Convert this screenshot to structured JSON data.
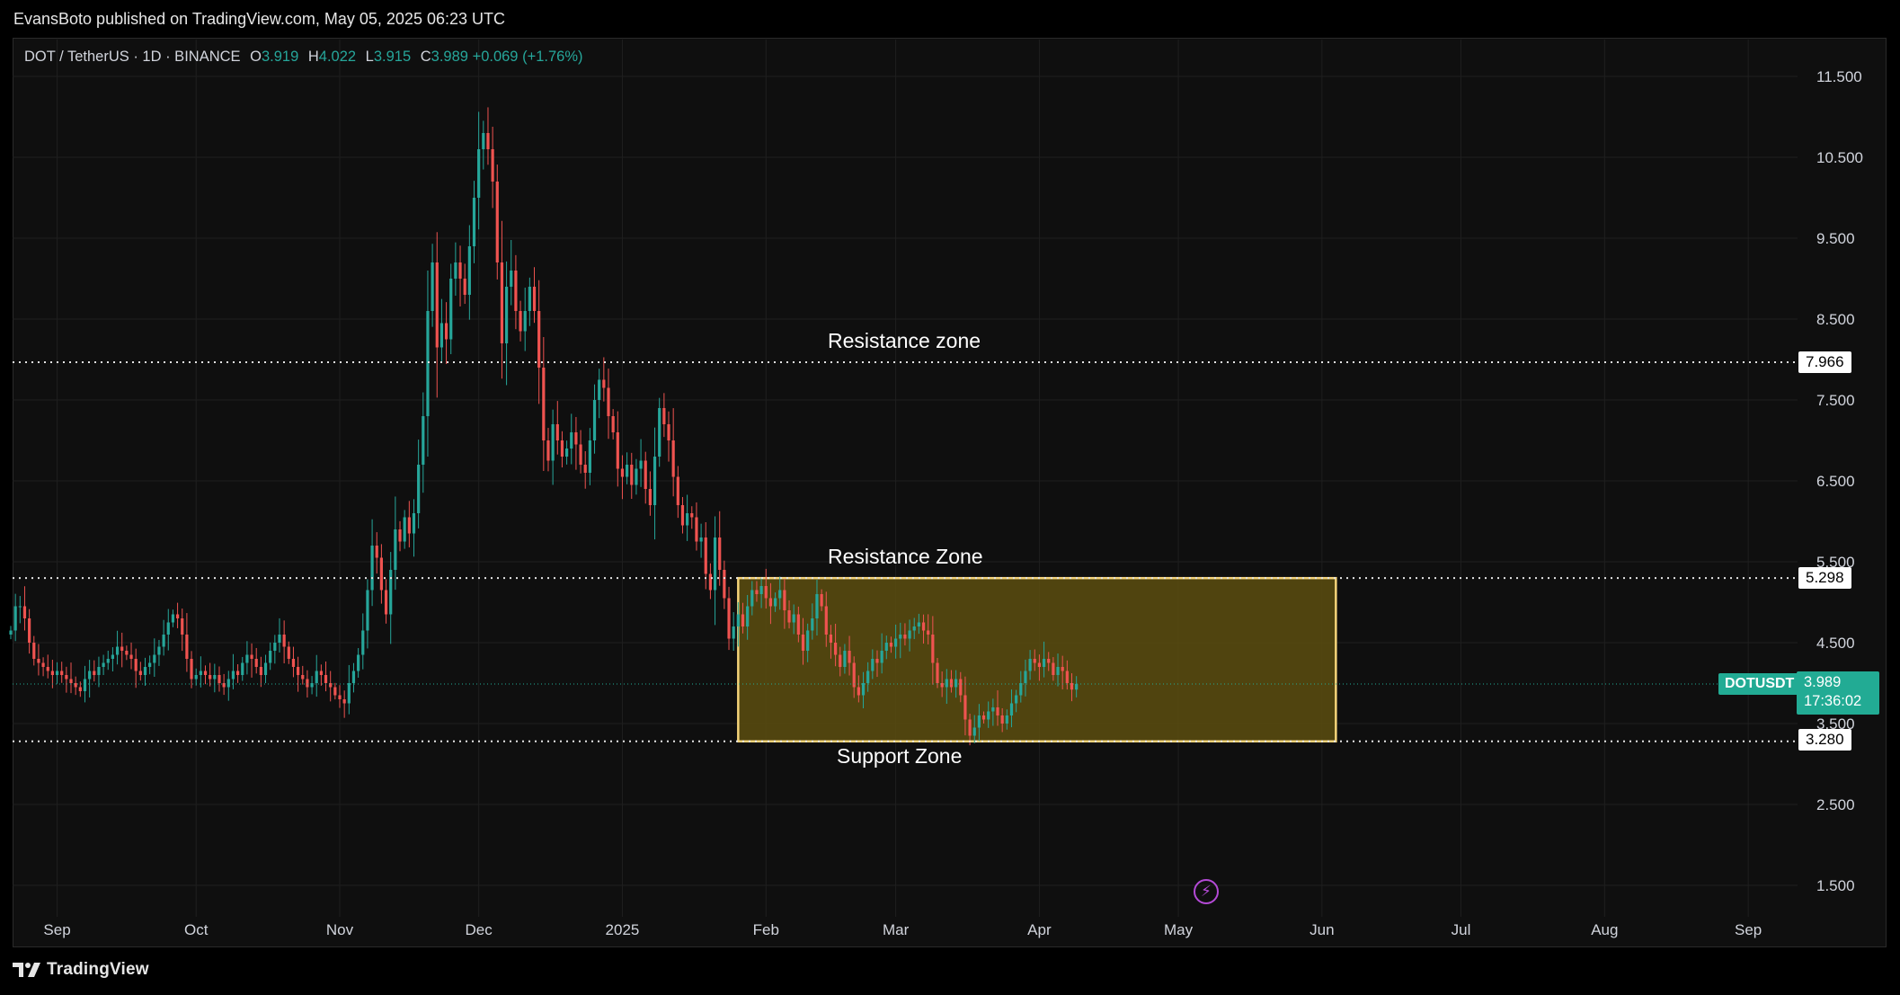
{
  "header": {
    "publisher": "EvansBoto published on TradingView.com, May 05, 2025 06:23 UTC"
  },
  "legend": {
    "symbol": "DOT / TetherUS · 1D · BINANCE",
    "open_label": "O",
    "open": "3.919",
    "high_label": "H",
    "high": "4.022",
    "low_label": "L",
    "low": "3.915",
    "close_label": "C",
    "close": "3.989",
    "change": "+0.069 (+1.76%)"
  },
  "price_tags": {
    "resistance_top": "7.966",
    "resistance_mid": "5.298",
    "support": "3.280"
  },
  "last_price": {
    "symbol": "DOTUSDT",
    "price": "3.989",
    "countdown": "17:36:02"
  },
  "annotations": {
    "resistance_top": "Resistance zone",
    "resistance_mid": "Resistance Zone",
    "support": "Support Zone"
  },
  "brand": {
    "name": "TradingView",
    "icon": "tradingview-logo-icon"
  },
  "colors": {
    "up": "#26a69a",
    "down": "#ef5350",
    "zone_fill": "#5c4d0f",
    "zone_border": "#f5d47a",
    "background": "#0f0f0f"
  },
  "chart_data": {
    "type": "candlestick",
    "title": "DOT / TetherUS · 1D · BINANCE",
    "x_ticks": [
      "Sep",
      "Oct",
      "Nov",
      "Dec",
      "2025",
      "Feb",
      "Mar",
      "Apr",
      "May",
      "Jun",
      "Jul",
      "Aug",
      "Sep"
    ],
    "y_ticks": [
      1.5,
      2.5,
      3.5,
      4.5,
      5.5,
      6.5,
      7.5,
      8.5,
      9.5,
      10.5,
      11.5
    ],
    "ylim": [
      1.0,
      12.0
    ],
    "grid": true,
    "horizontal_levels": [
      7.966,
      5.298,
      3.28
    ],
    "zone": {
      "from": "2025-01-26",
      "to": "2025-06-04",
      "low": 3.28,
      "high": 5.298
    },
    "last_price": 3.989,
    "closes": [
      4.65,
      4.95,
      4.95,
      4.8,
      4.5,
      4.3,
      4.25,
      4.2,
      4.15,
      4.1,
      4.15,
      4.1,
      4.05,
      4.0,
      3.95,
      3.9,
      4.05,
      4.15,
      4.1,
      4.2,
      4.25,
      4.3,
      4.35,
      4.45,
      4.4,
      4.35,
      4.3,
      4.15,
      4.1,
      4.2,
      4.25,
      4.35,
      4.45,
      4.6,
      4.75,
      4.85,
      4.8,
      4.6,
      4.3,
      4.05,
      4.1,
      4.15,
      4.1,
      4.05,
      4.1,
      4.0,
      3.95,
      4.05,
      4.15,
      4.1,
      4.25,
      4.35,
      4.3,
      4.2,
      4.1,
      4.25,
      4.4,
      4.5,
      4.6,
      4.45,
      4.3,
      4.2,
      4.1,
      4.05,
      3.95,
      4.0,
      4.15,
      4.1,
      4.0,
      3.95,
      3.85,
      3.8,
      3.75,
      4.0,
      4.15,
      4.35,
      4.65,
      5.15,
      5.7,
      5.55,
      5.15,
      4.85,
      5.4,
      5.9,
      5.75,
      6.05,
      5.85,
      6.1,
      6.7,
      7.3,
      8.6,
      9.2,
      8.15,
      8.45,
      8.25,
      9.0,
      9.2,
      9.0,
      8.8,
      9.4,
      10.0,
      10.6,
      10.8,
      10.6,
      10.2,
      9.2,
      8.2,
      8.9,
      9.1,
      8.6,
      8.35,
      8.6,
      8.9,
      8.6,
      7.9,
      7.0,
      6.75,
      7.2,
      7.0,
      6.8,
      6.9,
      7.1,
      6.95,
      6.7,
      6.6,
      7.0,
      7.5,
      7.75,
      7.65,
      7.3,
      7.1,
      6.65,
      6.55,
      6.7,
      6.45,
      6.65,
      6.75,
      6.4,
      6.2,
      6.8,
      7.4,
      7.2,
      7.0,
      6.55,
      6.2,
      5.95,
      6.1,
      6.05,
      5.75,
      5.8,
      5.35,
      5.15,
      5.8,
      5.4,
      5.05,
      4.55,
      4.7,
      4.85,
      4.7,
      4.95,
      5.15,
      5.1,
      5.2,
      5.05,
      4.95,
      5.05,
      5.15,
      4.9,
      4.75,
      4.85,
      4.6,
      4.4,
      4.65,
      4.8,
      5.1,
      4.95,
      4.6,
      4.5,
      4.35,
      4.2,
      4.4,
      4.25,
      3.95,
      3.85,
      4.0,
      4.15,
      4.3,
      4.25,
      4.4,
      4.5,
      4.45,
      4.55,
      4.6,
      4.55,
      4.65,
      4.7,
      4.75,
      4.65,
      4.6,
      4.25,
      4.0,
      3.95,
      4.05,
      3.95,
      4.05,
      3.85,
      3.55,
      3.35,
      3.45,
      3.6,
      3.55,
      3.65,
      3.7,
      3.6,
      3.5,
      3.6,
      3.75,
      3.85,
      4.0,
      4.15,
      4.3,
      4.25,
      4.2,
      4.3,
      4.25,
      4.1,
      4.2,
      4.15,
      4.0,
      3.92,
      3.99
    ]
  }
}
